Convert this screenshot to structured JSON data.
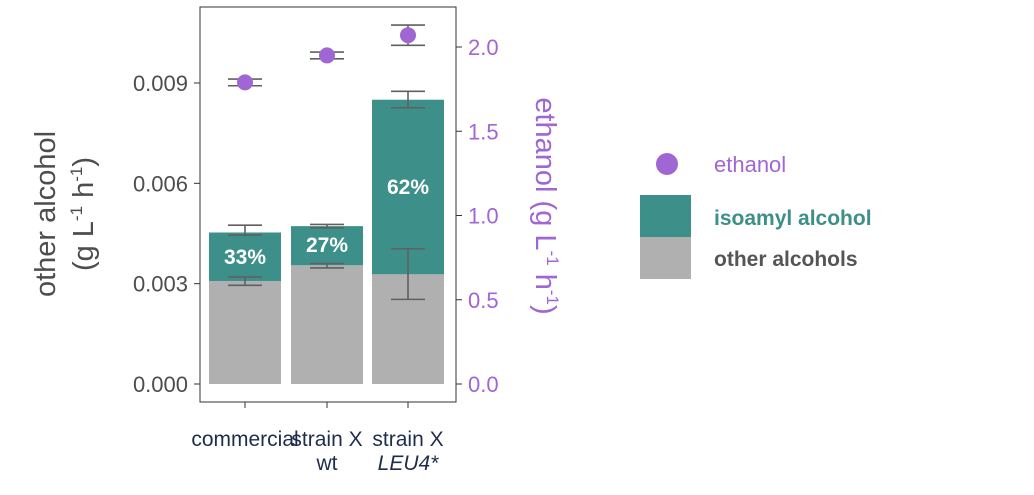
{
  "chart_data": {
    "type": "bar",
    "categories": [
      {
        "lines": [
          "commercial"
        ],
        "italic": [
          false
        ]
      },
      {
        "lines": [
          "strain X",
          "wt"
        ],
        "italic": [
          false,
          false
        ]
      },
      {
        "lines": [
          "strain X",
          "LEU4*"
        ],
        "italic": [
          false,
          true
        ]
      }
    ],
    "left_axis": {
      "label_line1": "other alcohol",
      "label_line2_base": "(g L",
      "label_line2_sup1": "-1",
      "label_line2_mid": " h",
      "label_line2_sup2": "-1",
      "label_line2_end": ")",
      "ylim": [
        0,
        0.0111
      ],
      "ticks": [
        0,
        0.003,
        0.006,
        0.009
      ],
      "tick_labels": [
        "0.000",
        "0.003",
        "0.006",
        "0.009"
      ]
    },
    "right_axis": {
      "label_base": "ethanol (g L",
      "label_sup1": "-1",
      "label_mid": " h",
      "label_sup2": "-1",
      "label_end": ")",
      "ylim": [
        -0.07,
        2.2
      ],
      "ticks": [
        0,
        0.5,
        1.0,
        1.5,
        2.0
      ],
      "tick_labels": [
        "0.0",
        "0.5",
        "1.0",
        "1.5",
        "2.0"
      ]
    },
    "series": [
      {
        "name": "other alcohols",
        "axis": "left",
        "values": [
          0.00308,
          0.00355,
          0.00328
        ],
        "error": [
          [
            0.00295,
            0.0032
          ],
          [
            0.00347,
            0.0036
          ],
          [
            0.00253,
            0.00404
          ]
        ]
      },
      {
        "name": "isoamyl alcohol",
        "axis": "left",
        "values": [
          0.00145,
          0.00117,
          0.00522
        ],
        "error": [
          [
            0.00445,
            0.00475
          ],
          [
            0.00467,
            0.00477
          ],
          [
            0.00826,
            0.00875
          ]
        ]
      },
      {
        "name": "ethanol",
        "axis": "right",
        "type": "point",
        "values": [
          1.79,
          1.95,
          2.07
        ],
        "error": [
          [
            1.77,
            1.81
          ],
          [
            1.93,
            1.97
          ],
          [
            2.01,
            2.13
          ]
        ]
      }
    ],
    "bar_labels": [
      "33%",
      "27%",
      "62%"
    ],
    "legend": {
      "position": "right",
      "items": [
        {
          "label": "ethanol",
          "key": "ethanol"
        },
        {
          "label": "isoamyl alcohol",
          "key": "isoamyl"
        },
        {
          "label": "other alcohols",
          "key": "other"
        }
      ]
    },
    "colors": {
      "ethanol": "#a066d3",
      "isoamyl": "#3d8f8a",
      "other": "#b0b0b0",
      "axis_text": "#4d4d4d",
      "category_text": "#1f2d4d",
      "error_bar": "#606060",
      "legend_other_text": "#555555"
    },
    "grid": false
  }
}
